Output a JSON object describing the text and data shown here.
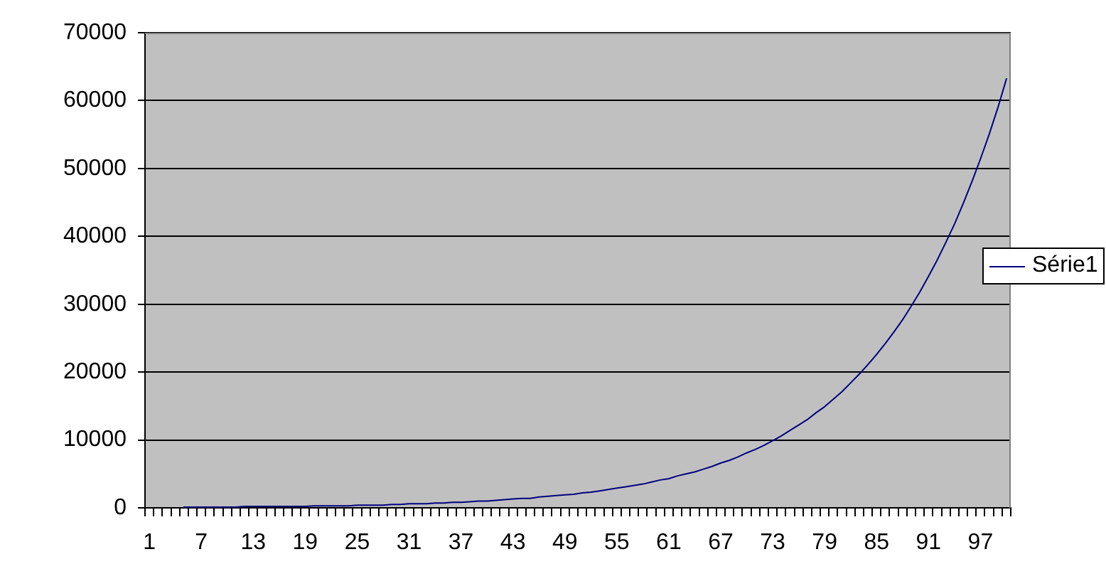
{
  "chart_data": {
    "type": "line",
    "categories": [
      "1",
      null,
      null,
      null,
      null,
      null,
      "7",
      null,
      null,
      null,
      null,
      null,
      "13",
      null,
      null,
      null,
      null,
      null,
      "19",
      null,
      null,
      null,
      null,
      null,
      "25",
      null,
      null,
      null,
      null,
      null,
      "31",
      null,
      null,
      null,
      null,
      null,
      "37",
      null,
      null,
      null,
      null,
      null,
      "43",
      null,
      null,
      null,
      null,
      null,
      "49",
      null,
      null,
      null,
      null,
      null,
      "55",
      null,
      null,
      null,
      null,
      null,
      "61",
      null,
      null,
      null,
      null,
      null,
      "67",
      null,
      null,
      null,
      null,
      null,
      "73",
      null,
      null,
      null,
      null,
      null,
      "79",
      null,
      null,
      null,
      null,
      null,
      "85",
      null,
      null,
      null,
      null,
      null,
      "91",
      null,
      null,
      null,
      null,
      null,
      "97",
      null,
      null,
      null
    ],
    "series": [
      {
        "name": "Série1",
        "color": "#000080",
        "values": [
          null,
          null,
          null,
          null,
          100,
          100,
          100,
          100,
          100,
          100,
          100,
          200,
          200,
          200,
          200,
          200,
          200,
          200,
          200,
          300,
          300,
          300,
          300,
          300,
          400,
          400,
          400,
          400,
          500,
          500,
          600,
          600,
          600,
          700,
          700,
          800,
          800,
          900,
          1000,
          1000,
          1100,
          1200,
          1300,
          1400,
          1400,
          1600,
          1700,
          1800,
          1900,
          2000,
          2200,
          2300,
          2500,
          2700,
          2900,
          3100,
          3300,
          3500,
          3800,
          4100,
          4300,
          4700,
          5000,
          5300,
          5700,
          6100,
          6600,
          7000,
          7500,
          8100,
          8600,
          9200,
          9900,
          10600,
          11400,
          12200,
          13000,
          14000,
          14900,
          16000,
          17100,
          18400,
          19700,
          21100,
          22600,
          24200,
          25900,
          27700,
          29700,
          31800,
          34100,
          36500,
          39100,
          41800,
          44800,
          48000,
          51400,
          55000,
          58900,
          63200
        ]
      }
    ],
    "ylim": [
      0,
      70000
    ],
    "yticks": [
      0,
      10000,
      20000,
      30000,
      40000,
      50000,
      60000,
      70000
    ],
    "grid": "y",
    "legend": "right"
  }
}
